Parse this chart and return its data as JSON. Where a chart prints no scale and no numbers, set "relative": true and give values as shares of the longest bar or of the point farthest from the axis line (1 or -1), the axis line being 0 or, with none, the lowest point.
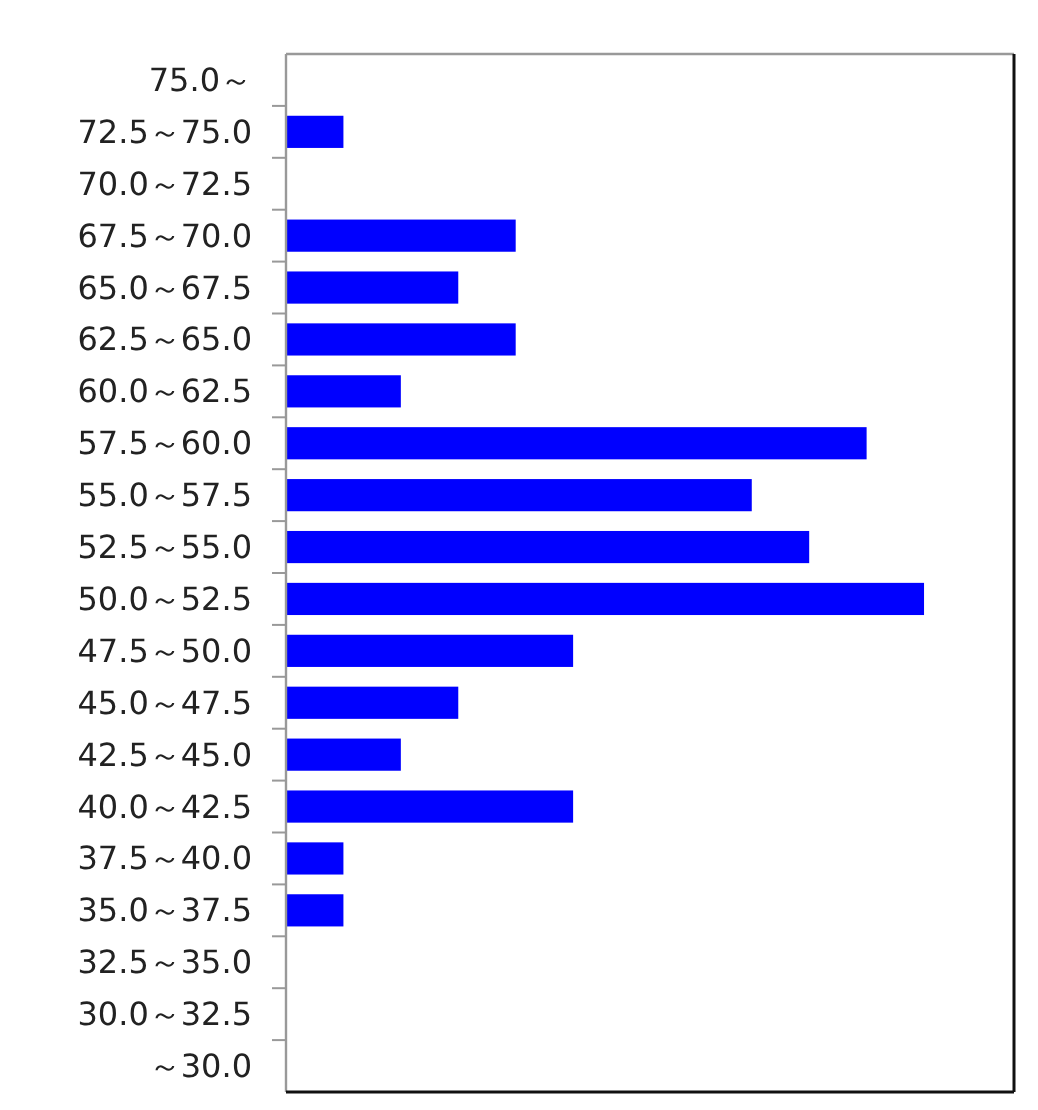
{
  "chart_data": {
    "type": "bar",
    "orientation": "horizontal",
    "relative": true,
    "tick_labels": "y",
    "color": "#0000ff",
    "categories": [
      "75.0～",
      "72.5～75.0",
      "70.0～72.5",
      "67.5～70.0",
      "65.0～67.5",
      "62.5～65.0",
      "60.0～62.5",
      "57.5～60.0",
      "55.0～57.5",
      "52.5～55.0",
      "50.0～52.5",
      "47.5～50.0",
      "45.0～47.5",
      "42.5～45.0",
      "40.0～42.5",
      "37.5～40.0",
      "35.0～37.5",
      "32.5～35.0",
      "30.0～32.5",
      "～30.0"
    ],
    "values": [
      0,
      0.09,
      0,
      0.36,
      0.27,
      0.36,
      0.18,
      0.91,
      0.73,
      0.82,
      1,
      0.45,
      0.27,
      0.18,
      0.45,
      0.09,
      0.09,
      0,
      0,
      0
    ]
  }
}
